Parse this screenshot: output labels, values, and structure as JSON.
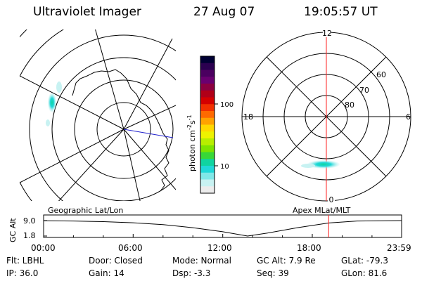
{
  "header": {
    "title": "Ultraviolet Imager",
    "date": "27 Aug 07",
    "time": "19:05:57 UT"
  },
  "colorbar": {
    "label_main": "photon cm",
    "label_exp1": "-2",
    "label_mid": "s",
    "label_exp2": "-1",
    "ticks": [
      "100",
      "10"
    ],
    "colors": [
      "#000033",
      "#2b0050",
      "#4b0060",
      "#6a0070",
      "#8c0040",
      "#b00018",
      "#d40000",
      "#f23000",
      "#ff6a00",
      "#ffa200",
      "#ffd800",
      "#eef200",
      "#b8ee00",
      "#7ee400",
      "#38d838",
      "#10d4a0",
      "#20d8d8",
      "#80e8e8",
      "#c8f2f2",
      "#ececec"
    ]
  },
  "geo_map": {
    "label": "Geographic Lat/Lon"
  },
  "polar_map": {
    "label": "Apex MLat/MLT",
    "mlt_labels": [
      "12",
      "18",
      "6",
      "0"
    ],
    "mlat_labels": [
      "60",
      "70",
      "80"
    ]
  },
  "altitude_plot": {
    "ylabel": "GC Alt",
    "ytick_labels": [
      "9.0",
      "1.8"
    ],
    "xtick_labels": [
      "00:00",
      "06:00",
      "12:00",
      "18:00",
      "23:59"
    ],
    "marker_color": "#ff2020"
  },
  "chart_data": {
    "type": "line",
    "title": "",
    "xlabel": "",
    "ylabel": "GC Alt",
    "xlim": [
      "00:00",
      "23:59"
    ],
    "ylim": [
      1.8,
      9.0
    ],
    "x": [
      "00:00",
      "02:00",
      "04:00",
      "06:00",
      "08:00",
      "10:00",
      "12:00",
      "13:40",
      "15:00",
      "17:00",
      "19:06",
      "21:00",
      "23:59"
    ],
    "series": [
      {
        "values": [
          8.9,
          8.8,
          8.5,
          8.0,
          7.1,
          5.7,
          3.8,
          1.8,
          3.2,
          5.7,
          7.9,
          8.8,
          9.0
        ]
      }
    ],
    "current_time": "19:05:57"
  },
  "info": {
    "flt": "Flt: LBHL",
    "ip": "IP: 36.0",
    "door": "Door: Closed",
    "gain": "Gain: 14",
    "mode": "Mode: Normal",
    "dsp": "Dsp:   -3.3",
    "gc_alt": "GC Alt: 7.9 Re",
    "seq": "Seq: 39",
    "glat": "GLat: -79.3",
    "glon": "GLon:  81.6"
  }
}
